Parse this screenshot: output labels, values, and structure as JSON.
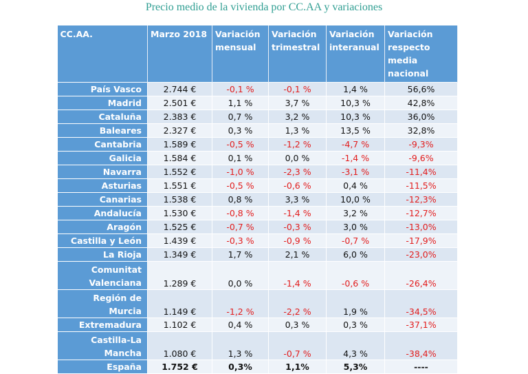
{
  "title": "Precio medio de la vivienda por CC.AA y variaciones",
  "headers": [
    "CC.AA.",
    "Marzo 2018",
    "Variación mensual",
    "Variación trimestral",
    "Variación interanual",
    "Variación respecto media nacional"
  ],
  "rows": [
    {
      "region": "País Vasco",
      "price": "2.744 €",
      "monthly": "-0,1 %",
      "quarterly": "-0,1 %",
      "annual": "1,4 %",
      "vs_national": "56,6%"
    },
    {
      "region": "Madrid",
      "price": "2.501 €",
      "monthly": "1,1 %",
      "quarterly": "3,7 %",
      "annual": "10,3 %",
      "vs_national": "42,8%"
    },
    {
      "region": "Cataluña",
      "price": "2.383 €",
      "monthly": "0,7 %",
      "quarterly": "3,2 %",
      "annual": "10,3 %",
      "vs_national": "36,0%"
    },
    {
      "region": "Baleares",
      "price": "2.327 €",
      "monthly": "0,3 %",
      "quarterly": "1,3 %",
      "annual": "13,5 %",
      "vs_national": "32,8%"
    },
    {
      "region": "Cantabria",
      "price": "1.589 €",
      "monthly": "-0,5 %",
      "quarterly": "-1,2 %",
      "annual": "-4,7 %",
      "vs_national": "-9,3%"
    },
    {
      "region": "Galicia",
      "price": "1.584 €",
      "monthly": "0,1 %",
      "quarterly": "0,0 %",
      "annual": "-1,4 %",
      "vs_national": "-9,6%"
    },
    {
      "region": "Navarra",
      "price": "1.552 €",
      "monthly": "-1,0 %",
      "quarterly": "-2,3 %",
      "annual": "-3,1 %",
      "vs_national": "-11,4%"
    },
    {
      "region": "Asturias",
      "price": "1.551 €",
      "monthly": "-0,5 %",
      "quarterly": "-0,6 %",
      "annual": "0,4 %",
      "vs_national": "-11,5%"
    },
    {
      "region": "Canarias",
      "price": "1.538 €",
      "monthly": "0,8 %",
      "quarterly": "3,3 %",
      "annual": "10,0 %",
      "vs_national": "-12,3%"
    },
    {
      "region": "Andalucía",
      "price": "1.530 €",
      "monthly": "-0,8 %",
      "quarterly": "-1,4 %",
      "annual": "3,2 %",
      "vs_national": "-12,7%"
    },
    {
      "region": "Aragón",
      "price": "1.525 €",
      "monthly": "-0,7 %",
      "quarterly": "-0,3 %",
      "annual": "3,0 %",
      "vs_national": "-13,0%"
    },
    {
      "region": "Castilla y León",
      "price": "1.439 €",
      "monthly": "-0,3 %",
      "quarterly": "-0,9 %",
      "annual": "-0,7 %",
      "vs_national": "-17,9%"
    },
    {
      "region": "La Rioja",
      "price": "1.349 €",
      "monthly": "1,7 %",
      "quarterly": "2,1 %",
      "annual": "6,0 %",
      "vs_national": "-23,0%"
    },
    {
      "region": "Comunitat Valenciana",
      "price": "1.289 €",
      "monthly": "0,0 %",
      "quarterly": "-1,4 %",
      "annual": "-0,6 %",
      "vs_national": "-26,4%"
    },
    {
      "region": "Región de Murcia",
      "price": "1.149 €",
      "monthly": "-1,2 %",
      "quarterly": "-2,2 %",
      "annual": "1,9 %",
      "vs_national": "-34,5%"
    },
    {
      "region": "Extremadura",
      "price": "1.102 €",
      "monthly": "0,4 %",
      "quarterly": "0,3 %",
      "annual": "0,3 %",
      "vs_national": "-37,1%"
    },
    {
      "region": "Castilla-La Mancha",
      "price": "1.080 €",
      "monthly": "1,3 %",
      "quarterly": "-0,7 %",
      "annual": "4,3 %",
      "vs_national": "-38,4%"
    }
  ],
  "total": {
    "region": "España",
    "price": "1.752 €",
    "monthly": "0,3%",
    "quarterly": "1,1%",
    "annual": "5,3%",
    "vs_national": "----"
  },
  "colors": {
    "header_bg": "#5b9bd5",
    "row_light": "#eef3f9",
    "row_dark": "#dce6f2",
    "negative": "#e21c1c",
    "title": "#2f9e92"
  }
}
